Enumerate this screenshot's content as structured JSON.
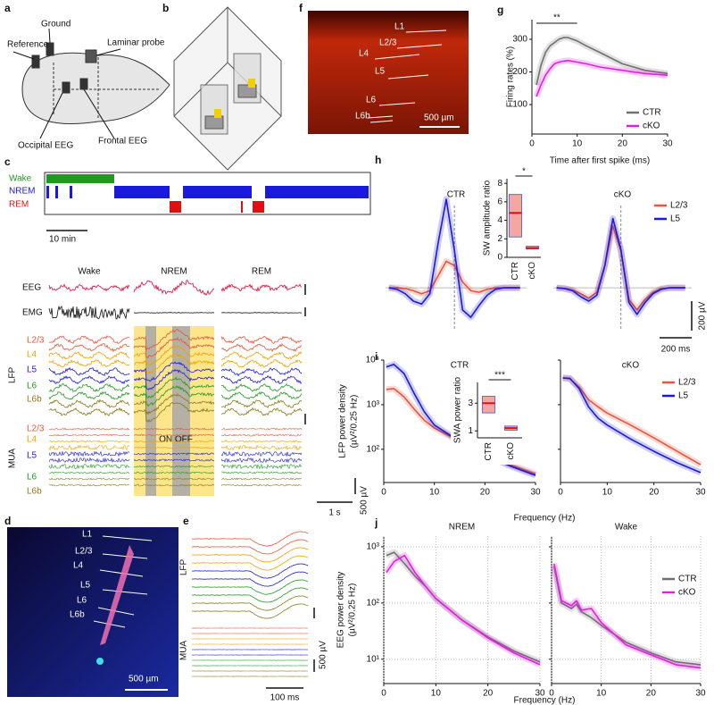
{
  "figure": {
    "panel_letters": [
      "a",
      "b",
      "c",
      "d",
      "e",
      "f",
      "g",
      "h",
      "i",
      "j"
    ],
    "a": {
      "labels": [
        "Reference",
        "Ground",
        "Laminar probe",
        "Occipital EEG",
        "Frontal EEG"
      ]
    },
    "c": {
      "states": [
        "Wake",
        "NREM",
        "REM"
      ],
      "hypnogram_scale": "10 min",
      "rows": [
        "EEG",
        "EMG"
      ],
      "groups": [
        "LFP",
        "MUA"
      ],
      "layers": [
        "L2/3",
        "L4",
        "L5",
        "L6",
        "L6b"
      ],
      "on_off": "ON OFF",
      "voltage_scale": "500 µV",
      "time_scale": "1 s"
    },
    "d": {
      "layers": [
        "L1",
        "L2/3",
        "L4",
        "L5",
        "L6",
        "L6b"
      ],
      "scale": "500 µm"
    },
    "e": {
      "groups": [
        "LFP",
        "MUA"
      ],
      "voltage_scale": "500 µV",
      "time_scale": "100 ms"
    },
    "f": {
      "layers": [
        "L1",
        "L2/3",
        "L4",
        "L5",
        "L6",
        "L6b"
      ],
      "scale": "500 µm"
    }
  },
  "chart_data": [
    {
      "type": "line",
      "xlabel": "Time after first spike (ms)",
      "ylabel": [
        "Firing rates (%)"
      ],
      "annotation": "**",
      "x": [
        1,
        2,
        3,
        4,
        5,
        6,
        7,
        8,
        10,
        12,
        15,
        20,
        25,
        30
      ],
      "xlim": [
        0,
        30
      ],
      "xticks": [
        0,
        10,
        20,
        30
      ],
      "ylim": [
        10,
        360
      ],
      "yticks": [
        100,
        200,
        300
      ],
      "legend": "lower right",
      "series": [
        {
          "name": "CTR",
          "color": "#707070",
          "values": [
            160,
            220,
            260,
            280,
            290,
            300,
            305,
            305,
            295,
            280,
            260,
            225,
            205,
            195
          ]
        },
        {
          "name": "cKO",
          "color": "#e020e0",
          "values": [
            125,
            160,
            190,
            210,
            225,
            230,
            233,
            235,
            230,
            225,
            215,
            205,
            195,
            190
          ]
        }
      ]
    },
    {
      "type": "wave",
      "title": "CTR",
      "x": [
        -400,
        -350,
        -300,
        -250,
        -200,
        -150,
        -100,
        -50,
        0,
        50,
        100,
        150,
        200,
        250,
        300,
        350,
        400
      ],
      "xlim": [
        -420,
        440
      ],
      "ylim": [
        -290,
        800
      ],
      "series": [
        {
          "color": "#e8553a",
          "values": [
            0,
            0,
            -5,
            -20,
            -40,
            -20,
            80,
            180,
            150,
            40,
            -20,
            -30,
            -10,
            0,
            0,
            0,
            0
          ]
        },
        {
          "color": "#1a1adc",
          "values": [
            0,
            -10,
            -40,
            -90,
            -110,
            -40,
            300,
            600,
            250,
            -150,
            -200,
            -120,
            -50,
            -10,
            0,
            0,
            0
          ]
        }
      ]
    },
    {
      "type": "box",
      "ylabel": [
        "SW amplitude ratio"
      ],
      "annotation": "*",
      "categories": [
        "CTR",
        "cKO"
      ],
      "values": [
        4.8,
        1.0
      ],
      "box_low": [
        2.2,
        0.9
      ],
      "box_high": [
        6.8,
        1.2
      ],
      "colors": [
        "#f4a6a0",
        "#f4a6a0"
      ],
      "ylim": [
        0,
        8.5
      ],
      "yticks": [
        0,
        2,
        4,
        6,
        8
      ]
    },
    {
      "type": "wave",
      "title": "cKO",
      "x": [
        -400,
        -350,
        -300,
        -250,
        -200,
        -150,
        -100,
        -50,
        0,
        50,
        100,
        150,
        200,
        250,
        300,
        350,
        400
      ],
      "xlim": [
        -420,
        440
      ],
      "ylim": [
        -290,
        800
      ],
      "legend": "upper right",
      "scalebar": {
        "x": {
          "value": 200,
          "label": "200 ms"
        },
        "y": {
          "value": 200,
          "label": "200 µV"
        }
      },
      "series": [
        {
          "name": "L2/3",
          "color": "#e8553a",
          "values": [
            0,
            -5,
            -15,
            -40,
            -70,
            -30,
            150,
            420,
            250,
            -80,
            -150,
            -80,
            -30,
            -5,
            0,
            0,
            0
          ]
        },
        {
          "name": "L5",
          "color": "#1a1adc",
          "values": [
            0,
            -5,
            -20,
            -60,
            -90,
            -50,
            150,
            470,
            260,
            -100,
            -180,
            -100,
            -40,
            -10,
            0,
            0,
            0
          ]
        }
      ]
    },
    {
      "type": "line",
      "log": true,
      "title": "CTR",
      "xlabel": "Frequency (Hz)",
      "ylabel": [
        "LFP power density",
        "(µV²/0.25 Hz)"
      ],
      "x": [
        0.5,
        2,
        4,
        6,
        8,
        10,
        15,
        20,
        25,
        30
      ],
      "xlim": [
        0,
        30
      ],
      "xticks": [
        0,
        10,
        20,
        30
      ],
      "ylim": [
        18,
        10000
      ],
      "yticks": [
        {
          "value": 100,
          "label": "10²"
        },
        {
          "value": 1000,
          "label": "10³"
        },
        {
          "value": 10000,
          "label": "10⁴"
        }
      ],
      "series": [
        {
          "color": "#e8553a",
          "values": [
            2200,
            2300,
            1500,
            800,
            450,
            300,
            150,
            80,
            45,
            28
          ]
        },
        {
          "color": "#1a1adc",
          "values": [
            7000,
            8000,
            5000,
            1800,
            700,
            350,
            150,
            75,
            42,
            26
          ]
        }
      ]
    },
    {
      "type": "box",
      "ylabel": [
        "SWA power ratio"
      ],
      "annotation": "***",
      "categories": [
        "CTR",
        "cKO"
      ],
      "values": [
        3.0,
        1.2
      ],
      "box_low": [
        2.3,
        1.05
      ],
      "box_high": [
        3.5,
        1.35
      ],
      "colors": [
        "#f4a6a0",
        "#f4a6a0"
      ],
      "ylim": [
        0.5,
        4.5
      ],
      "yticks": [
        1,
        3
      ]
    },
    {
      "type": "line",
      "log": true,
      "title": "cKO",
      "legend": "upper right",
      "x": [
        0.5,
        2,
        4,
        6,
        8,
        10,
        15,
        20,
        25,
        30
      ],
      "xlim": [
        0,
        30
      ],
      "xticks": [
        0,
        10,
        20,
        30
      ],
      "ylim": [
        18,
        10000
      ],
      "series": [
        {
          "name": "L2/3",
          "color": "#e8553a",
          "values": [
            4000,
            3800,
            2500,
            1300,
            900,
            650,
            350,
            180,
            90,
            45
          ]
        },
        {
          "name": "L5",
          "color": "#1a1adc",
          "values": [
            4000,
            3900,
            2300,
            900,
            500,
            350,
            170,
            90,
            50,
            30
          ]
        }
      ]
    },
    {
      "type": "line",
      "log": true,
      "grid": true,
      "title": "NREM",
      "xlabel": "Frequency (Hz)",
      "ylabel": [
        "EEG power density",
        "(µV²/0.25 Hz)"
      ],
      "x": [
        0.5,
        2,
        4,
        6,
        8,
        10,
        15,
        20,
        25,
        30
      ],
      "xlim": [
        0,
        30
      ],
      "xticks": [
        0,
        10,
        20,
        30
      ],
      "ylim": [
        3.7,
        1550
      ],
      "yticks": [
        {
          "value": 10,
          "label": "10¹"
        },
        {
          "value": 100,
          "label": "10²"
        },
        {
          "value": 1000,
          "label": "10³"
        }
      ],
      "series": [
        {
          "color": "#707070",
          "values": [
            700,
            800,
            500,
            300,
            200,
            120,
            50,
            25,
            14,
            9
          ]
        },
        {
          "color": "#e020e0",
          "values": [
            350,
            550,
            700,
            350,
            200,
            120,
            50,
            24,
            13,
            8
          ]
        }
      ]
    },
    {
      "type": "line",
      "log": true,
      "grid": true,
      "title": "Wake",
      "legend": "upper right",
      "x": [
        0.5,
        2,
        4,
        5,
        6,
        8,
        10,
        15,
        20,
        25,
        30
      ],
      "xlim": [
        0,
        30
      ],
      "xticks": [
        0,
        10,
        20,
        30
      ],
      "ylim": [
        3.7,
        1550
      ],
      "series": [
        {
          "name": "CTR",
          "color": "#707070",
          "values": [
            450,
            100,
            80,
            95,
            70,
            55,
            40,
            20,
            13,
            9,
            8
          ]
        },
        {
          "name": "cKO",
          "color": "#e020e0",
          "values": [
            500,
            110,
            90,
            110,
            75,
            80,
            45,
            18,
            12,
            8,
            7
          ]
        }
      ]
    }
  ]
}
